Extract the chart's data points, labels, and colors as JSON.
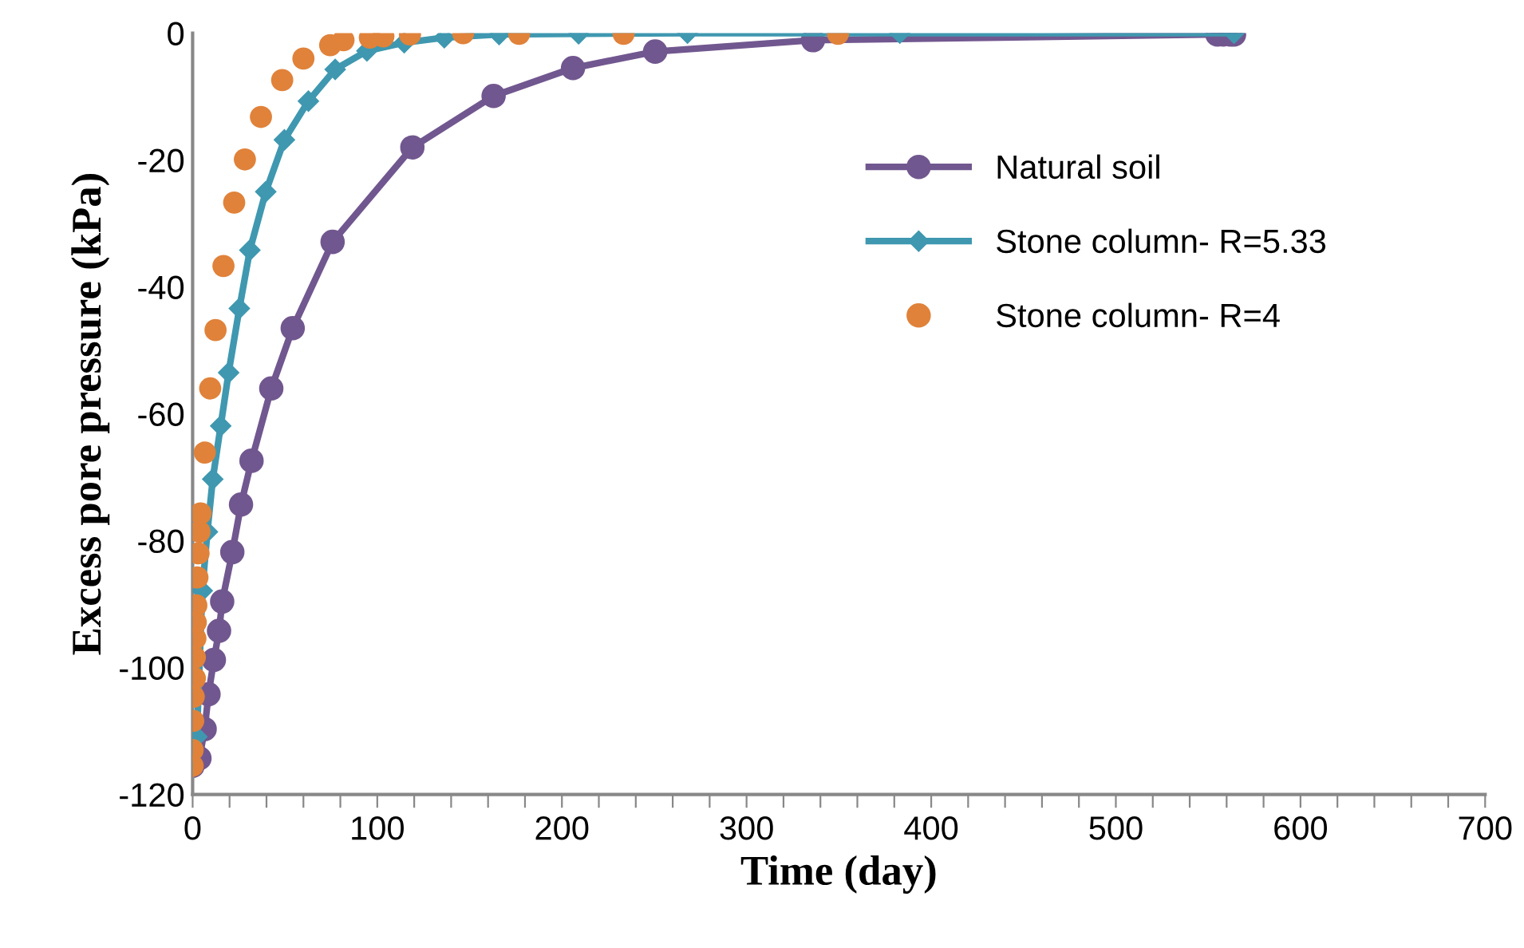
{
  "chart_data": {
    "type": "line",
    "xlabel": "Time (day)",
    "ylabel": "Excess pore pressure (kPa)",
    "xlim": [
      0,
      700
    ],
    "ylim": [
      -120,
      0
    ],
    "xticks": [
      0,
      {
        "value": 20,
        "label": null
      },
      {
        "value": 40,
        "label": null
      },
      {
        "value": 60,
        "label": null
      },
      {
        "value": 80,
        "label": null
      },
      100,
      {
        "value": 120,
        "label": null
      },
      {
        "value": 140,
        "label": null
      },
      {
        "value": 160,
        "label": null
      },
      {
        "value": 180,
        "label": null
      },
      200,
      {
        "value": 220,
        "label": null
      },
      {
        "value": 240,
        "label": null
      },
      {
        "value": 260,
        "label": null
      },
      {
        "value": 280,
        "label": null
      },
      300,
      {
        "value": 320,
        "label": null
      },
      {
        "value": 340,
        "label": null
      },
      {
        "value": 360,
        "label": null
      },
      {
        "value": 380,
        "label": null
      },
      400,
      {
        "value": 420,
        "label": null
      },
      {
        "value": 440,
        "label": null
      },
      {
        "value": 460,
        "label": null
      },
      {
        "value": 480,
        "label": null
      },
      500,
      {
        "value": 520,
        "label": null
      },
      {
        "value": 540,
        "label": null
      },
      {
        "value": 560,
        "label": null
      },
      {
        "value": 580,
        "label": null
      },
      600,
      {
        "value": 620,
        "label": null
      },
      {
        "value": 640,
        "label": null
      },
      {
        "value": 660,
        "label": null
      },
      {
        "value": 680,
        "label": null
      },
      700
    ],
    "yticks": [
      -120,
      -100,
      -80,
      -60,
      -40,
      -20,
      0
    ],
    "grid": false,
    "legend": "top right",
    "series": [
      {
        "name": "Natural soil",
        "color": "#71578f",
        "marker": "circle",
        "x": [
          0,
          3.7,
          6.5,
          8.6,
          11.5,
          14.3,
          16,
          21.5,
          26.2,
          31.9,
          42.6,
          54.2,
          75.8,
          119,
          163,
          206,
          250.5,
          336,
          555,
          558,
          562,
          564
        ],
        "values": [
          -115.5,
          -114.3,
          -109.7,
          -104.2,
          -98.8,
          -94.2,
          -89.6,
          -81.8,
          -74.3,
          -67.4,
          -56,
          -46.5,
          -32.9,
          -18,
          -9.9,
          -5.5,
          -2.9,
          -1.1,
          -0.2,
          -0.2,
          -0.2,
          -0.2
        ]
      },
      {
        "name": "Stone column- R=5.33",
        "color": "#3f98b0",
        "marker": "diamond",
        "x": [
          0,
          2.3,
          5.2,
          8,
          10.9,
          15.2,
          19.5,
          25.3,
          31,
          39.6,
          49.7,
          62.7,
          77.2,
          94.4,
          114.6,
          136.3,
          166,
          209,
          268,
          383,
          564
        ],
        "values": [
          -115.5,
          -110.9,
          -87.9,
          -78.6,
          -70.3,
          -61.9,
          -53.5,
          -43.4,
          -34.2,
          -25,
          -16.8,
          -10.7,
          -5.7,
          -2.8,
          -1.5,
          -0.7,
          -0.2,
          -0.1,
          0,
          0,
          0
        ]
      },
      {
        "name": "Stone column- R=4",
        "type": "scatter",
        "color": "#e0823a",
        "marker": "circle",
        "x": [
          0,
          0,
          0.3,
          0.6,
          1.2,
          1.2,
          1.5,
          1.7,
          2,
          2.6,
          3.2,
          3.7,
          4.3,
          6.6,
          9.5,
          12.4,
          16.7,
          22.5,
          28.3,
          37,
          48.5,
          60,
          74.5,
          81.7,
          96,
          103.3,
          117.7,
          146.5,
          176.8,
          233.4,
          349.5
        ],
        "values": [
          -115.5,
          -113,
          -108.4,
          -104.6,
          -101.7,
          -98.4,
          -95.4,
          -92.9,
          -90.2,
          -85.8,
          -82,
          -78.6,
          -75.7,
          -66.1,
          -56,
          -46.8,
          -36.7,
          -26.7,
          -19.9,
          -13.2,
          -7.4,
          -4,
          -1.9,
          -1.1,
          -0.7,
          -0.5,
          -0.2,
          0,
          -0.1,
          -0.1,
          -0.1
        ]
      }
    ]
  }
}
